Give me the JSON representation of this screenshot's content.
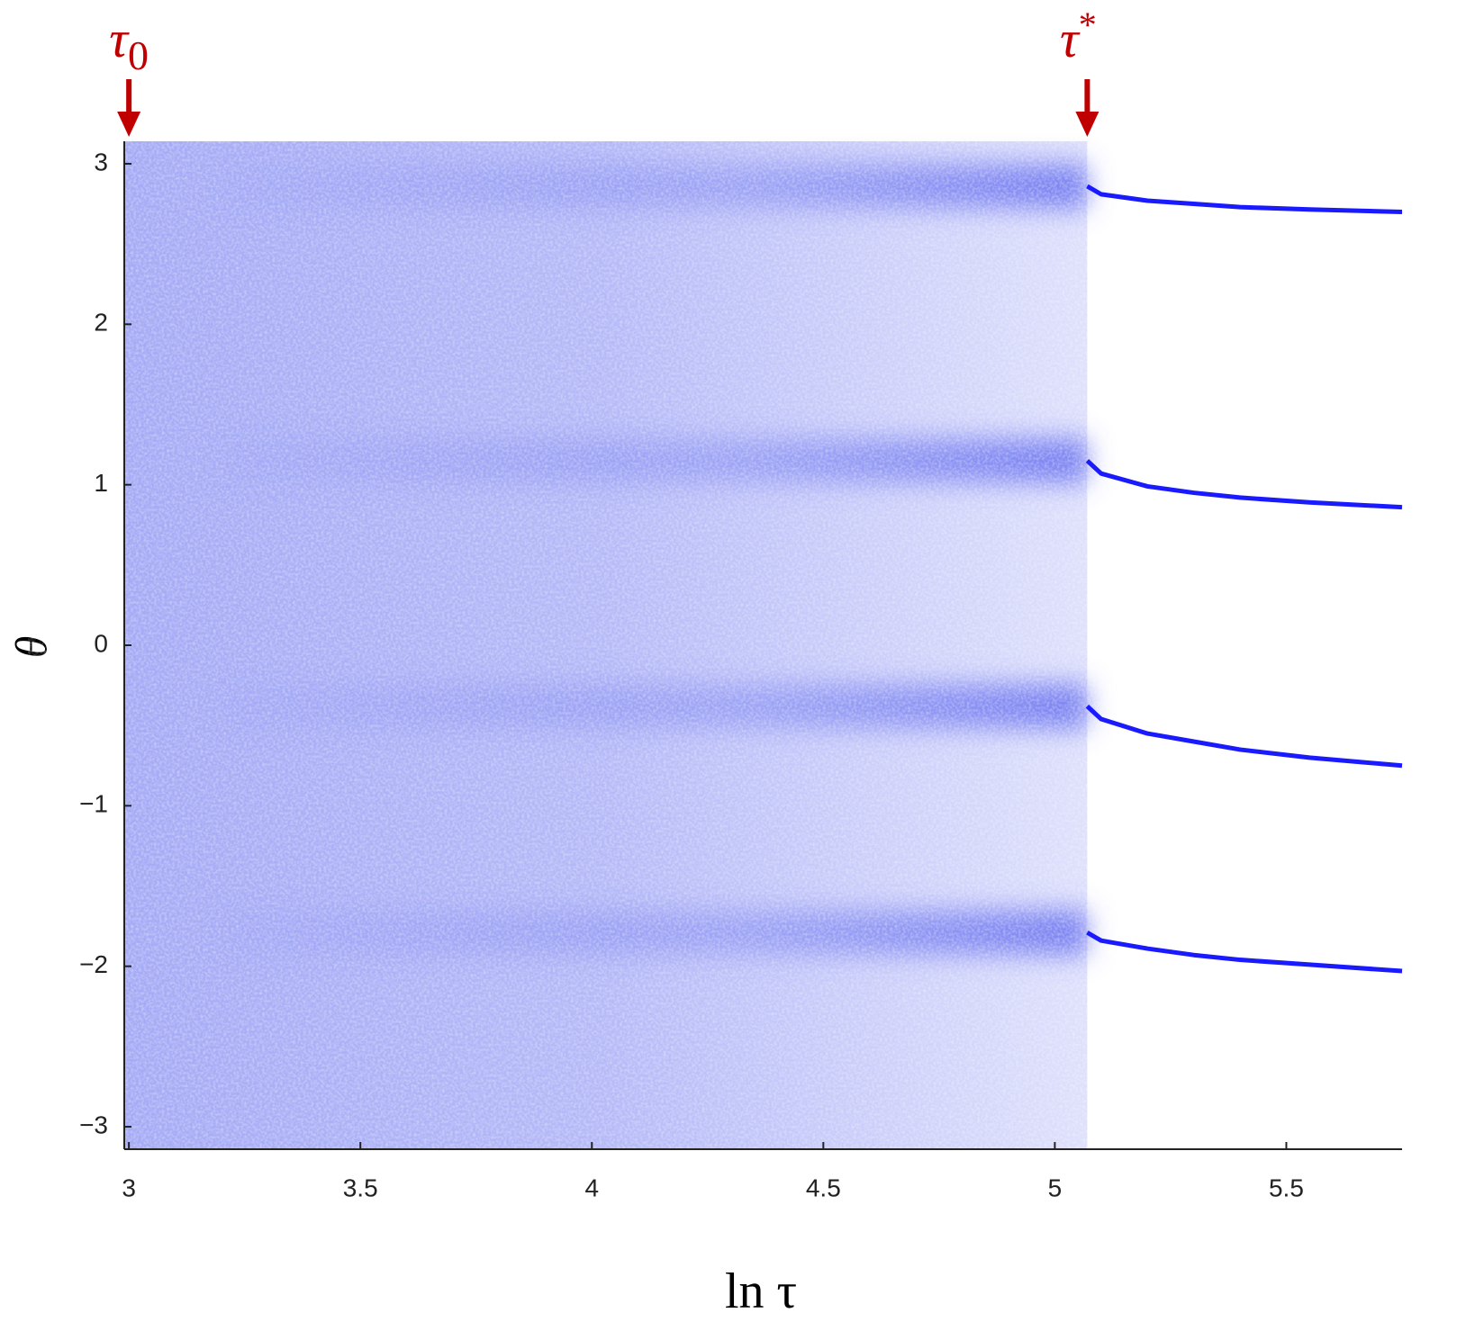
{
  "chart_data": {
    "type": "line",
    "x_label": "ln τ",
    "y_label": "θ",
    "xlim": [
      2.99,
      5.75
    ],
    "ylim": [
      -3.14,
      3.14
    ],
    "xticks": [
      3,
      3.5,
      4,
      4.5,
      5,
      5.5
    ],
    "yticks": [
      {
        "value": -3,
        "label": "−3"
      },
      {
        "value": -2,
        "label": "−2"
      },
      {
        "value": -1,
        "label": "−1"
      },
      0,
      1,
      2,
      3
    ],
    "cloud_x": [
      2.99,
      5.07
    ],
    "cloud_color": "#5a64ee",
    "annotation_color": "#c00000",
    "annotations": [
      {
        "text": "τ",
        "script": "0",
        "script_pos": "sub",
        "x": 3
      },
      {
        "text": "τ",
        "script": "*",
        "script_pos": "sup",
        "x": 5.07
      }
    ],
    "x": [
      5.07,
      5.1,
      5.2,
      5.3,
      5.4,
      5.55,
      5.75
    ],
    "series": [
      {
        "color": "#1a1aff",
        "values": [
          2.86,
          2.81,
          2.77,
          2.75,
          2.73,
          2.715,
          2.7
        ]
      },
      {
        "color": "#1a1aff",
        "values": [
          1.15,
          1.07,
          0.99,
          0.95,
          0.92,
          0.89,
          0.86
        ]
      },
      {
        "color": "#1a1aff",
        "values": [
          -0.38,
          -0.46,
          -0.55,
          -0.6,
          -0.65,
          -0.7,
          -0.75
        ]
      },
      {
        "color": "#1a1aff",
        "values": [
          -1.79,
          -1.84,
          -1.89,
          -1.93,
          -1.96,
          -1.99,
          -2.03
        ]
      }
    ]
  }
}
